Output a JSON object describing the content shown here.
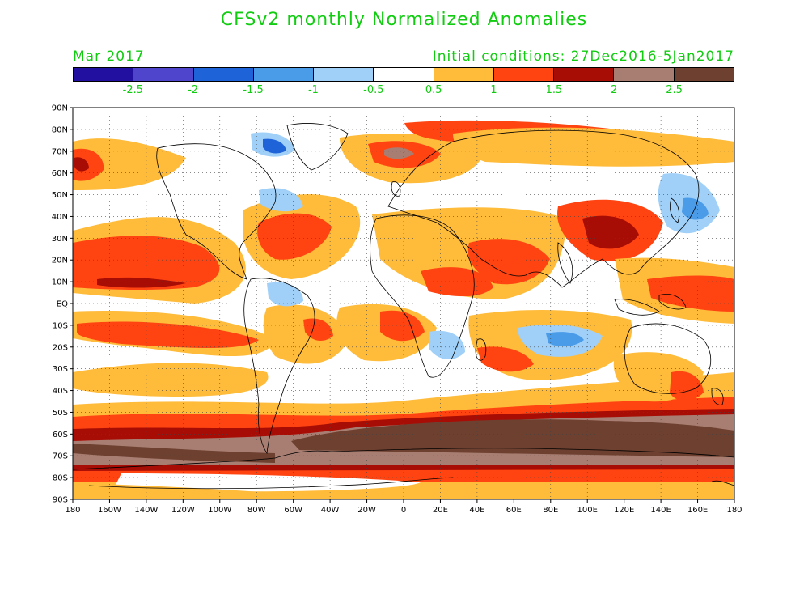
{
  "header": {
    "title": "CFSv2 monthly Normalized Anomalies",
    "month": "Mar 2017",
    "initial_conditions": "Initial conditions: 27Dec2016-5Jan2017"
  },
  "colorbar": {
    "colors": [
      "#2211a0",
      "#4e45cc",
      "#1f63d8",
      "#4a9be8",
      "#a0d0f8",
      "#ffffff",
      "#ffbb3a",
      "#ff4411",
      "#a80d05",
      "#a87e72",
      "#6d4030"
    ],
    "labels": [
      "-2.5",
      "-2",
      "-1.5",
      "-1",
      "-0.5",
      "0.5",
      "1",
      "1.5",
      "2",
      "2.5"
    ]
  },
  "axes": {
    "lat_labels": [
      "90N",
      "80N",
      "70N",
      "60N",
      "50N",
      "40N",
      "30N",
      "20N",
      "10N",
      "EQ",
      "10S",
      "20S",
      "30S",
      "40S",
      "50S",
      "60S",
      "70S",
      "80S",
      "90S"
    ],
    "lon_labels": [
      "180",
      "160W",
      "140W",
      "120W",
      "100W",
      "80W",
      "60W",
      "40W",
      "20W",
      "0",
      "20E",
      "40E",
      "60E",
      "80E",
      "100E",
      "120E",
      "140E",
      "160E",
      "180"
    ]
  }
}
